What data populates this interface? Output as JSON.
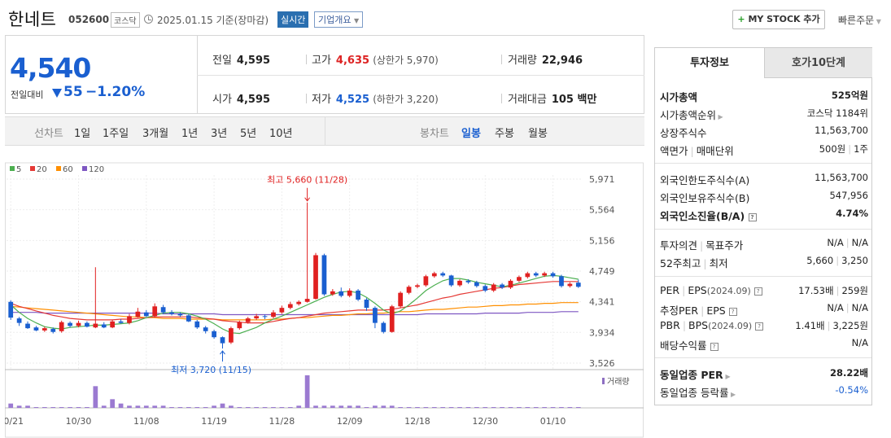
{
  "header": {
    "stock_name": "한네트",
    "stock_code": "052600",
    "market": "코스닥",
    "date": "2025.01.15 기준(장마감)",
    "realtime": "실시간",
    "overview": "기업개요",
    "mystock": "MY STOCK 추가",
    "quick_order": "빠른주문"
  },
  "quote": {
    "price": "4,540",
    "change_label": "전일대비",
    "change": "55",
    "change_pct": "−1.20%",
    "prev_label": "전일",
    "prev": "4,595",
    "high_label": "고가",
    "high": "4,635",
    "upper_limit": "(상한가 5,970)",
    "volume_label": "거래량",
    "volume": "22,946",
    "open_label": "시가",
    "open": "4,595",
    "low_label": "저가",
    "low": "4,525",
    "lower_limit": "(하한가 3,220)",
    "amount_label": "거래대금",
    "amount": "105 백만"
  },
  "toolbar": {
    "line_label": "선차트",
    "line_opts": [
      "1일",
      "1주일",
      "3개월",
      "1년",
      "3년",
      "5년",
      "10년"
    ],
    "candle_label": "봉차트",
    "candle_opts": [
      "일봉",
      "주봉",
      "월봉"
    ],
    "candle_active": "일봉"
  },
  "chart_data": {
    "type": "candlestick",
    "legend": [
      {
        "name": "5",
        "color": "#4caf50"
      },
      {
        "name": "20",
        "color": "#e53935"
      },
      {
        "name": "60",
        "color": "#ff8f00"
      },
      {
        "name": "120",
        "color": "#7e57c2"
      }
    ],
    "y_ticks": [
      "5,971",
      "5,564",
      "5,156",
      "4,749",
      "4,341",
      "3,934",
      "3,526"
    ],
    "y_range": [
      3526,
      5971
    ],
    "x_ticks": [
      "10/21",
      "10/30",
      "11/08",
      "11/19",
      "11/28",
      "12/09",
      "12/18",
      "12/30",
      "01/10"
    ],
    "max_label": "최고 5,660 (11/28)",
    "min_label": "최저 3,720 (11/15)",
    "volume_label": "거래량",
    "candles": [
      [
        4340,
        4130,
        4360,
        4100
      ],
      [
        4120,
        4060,
        4140,
        4020
      ],
      [
        4050,
        3990,
        4080,
        3980
      ],
      [
        4000,
        3960,
        4020,
        3950
      ],
      [
        3960,
        3990,
        4010,
        3940
      ],
      [
        3980,
        3940,
        4000,
        3920
      ],
      [
        3950,
        4070,
        4090,
        3930
      ],
      [
        4060,
        4020,
        4080,
        4000
      ],
      [
        4020,
        4060,
        4090,
        4000
      ],
      [
        4060,
        4010,
        4080,
        4000
      ],
      [
        4000,
        4050,
        4800,
        3990
      ],
      [
        4040,
        4000,
        4070,
        3990
      ],
      [
        4000,
        4080,
        4100,
        3990
      ],
      [
        4080,
        4060,
        4110,
        4050
      ],
      [
        4060,
        4150,
        4180,
        4040
      ],
      [
        4140,
        4210,
        4260,
        4130
      ],
      [
        4200,
        4150,
        4230,
        4140
      ],
      [
        4150,
        4280,
        4320,
        4130
      ],
      [
        4270,
        4200,
        4300,
        4180
      ],
      [
        4200,
        4180,
        4230,
        4160
      ],
      [
        4180,
        4160,
        4200,
        4140
      ],
      [
        4160,
        4080,
        4180,
        4070
      ],
      [
        4080,
        4000,
        4100,
        3980
      ],
      [
        4000,
        3950,
        4020,
        3920
      ],
      [
        3950,
        3870,
        3970,
        3850
      ],
      [
        3870,
        3790,
        3880,
        3720
      ],
      [
        3800,
        3990,
        4010,
        3780
      ],
      [
        3990,
        4070,
        4090,
        3970
      ],
      [
        4070,
        4120,
        4140,
        4050
      ],
      [
        4120,
        4150,
        4180,
        4100
      ],
      [
        4150,
        4140,
        4170,
        4110
      ],
      [
        4140,
        4200,
        4230,
        4120
      ],
      [
        4200,
        4260,
        4290,
        4180
      ],
      [
        4260,
        4310,
        4340,
        4240
      ],
      [
        4310,
        4340,
        4360,
        4290
      ],
      [
        4340,
        4380,
        5660,
        4330
      ],
      [
        4380,
        4960,
        4990,
        4370
      ],
      [
        4960,
        4440,
        4980,
        4420
      ],
      [
        4440,
        4480,
        4510,
        4420
      ],
      [
        4480,
        4420,
        4530,
        4400
      ],
      [
        4420,
        4490,
        4520,
        4400
      ],
      [
        4490,
        4370,
        4510,
        4350
      ],
      [
        4370,
        4260,
        4390,
        4220
      ],
      [
        4260,
        4060,
        4280,
        3990
      ],
      [
        4060,
        3940,
        4080,
        3920
      ],
      [
        3940,
        4280,
        4300,
        3930
      ],
      [
        4280,
        4460,
        4480,
        4260
      ],
      [
        4460,
        4540,
        4560,
        4440
      ],
      [
        4540,
        4560,
        4580,
        4520
      ],
      [
        4560,
        4680,
        4700,
        4540
      ],
      [
        4680,
        4720,
        4740,
        4660
      ],
      [
        4720,
        4690,
        4740,
        4670
      ],
      [
        4690,
        4560,
        4700,
        4540
      ],
      [
        4560,
        4620,
        4640,
        4540
      ],
      [
        4620,
        4600,
        4640,
        4580
      ],
      [
        4600,
        4550,
        4620,
        4530
      ],
      [
        4550,
        4490,
        4570,
        4470
      ],
      [
        4490,
        4570,
        4590,
        4470
      ],
      [
        4570,
        4530,
        4590,
        4510
      ],
      [
        4530,
        4620,
        4640,
        4510
      ],
      [
        4620,
        4670,
        4690,
        4600
      ],
      [
        4670,
        4720,
        4740,
        4650
      ],
      [
        4720,
        4690,
        4740,
        4670
      ],
      [
        4690,
        4720,
        4740,
        4670
      ],
      [
        4720,
        4680,
        4740,
        4660
      ],
      [
        4680,
        4550,
        4700,
        4530
      ],
      [
        4550,
        4580,
        4600,
        4530
      ],
      [
        4595,
        4540,
        4635,
        4525
      ]
    ],
    "volumes": [
      2,
      1,
      1,
      0,
      0,
      0,
      0,
      0,
      0,
      0,
      10,
      1,
      4,
      2,
      1,
      1,
      1,
      1,
      1,
      0,
      0,
      0,
      0,
      0,
      1,
      2,
      1,
      0,
      0,
      0,
      0,
      0,
      0,
      0,
      1,
      15,
      1,
      1,
      1,
      1,
      1,
      1,
      0,
      1,
      1,
      1,
      0,
      0,
      0,
      0,
      0,
      0,
      0,
      0,
      0,
      0,
      0,
      0,
      0,
      0,
      0,
      0,
      0,
      0,
      0,
      0,
      0,
      0
    ],
    "ma5": [
      4300,
      4200,
      4120,
      4060,
      4010,
      3990,
      3980,
      4000,
      4010,
      4020,
      4030,
      4030,
      4040,
      4050,
      4060,
      4090,
      4130,
      4160,
      4190,
      4200,
      4200,
      4180,
      4150,
      4110,
      4050,
      3980,
      3930,
      3920,
      3960,
      4000,
      4060,
      4110,
      4150,
      4200,
      4250,
      4300,
      4350,
      4400,
      4440,
      4470,
      4480,
      4460,
      4400,
      4320,
      4230,
      4180,
      4220,
      4300,
      4390,
      4490,
      4560,
      4620,
      4650,
      4650,
      4630,
      4600,
      4580,
      4560,
      4540,
      4560,
      4590,
      4620,
      4650,
      4680,
      4690,
      4680,
      4660,
      4640
    ],
    "ma20": [
      4320,
      4280,
      4250,
      4220,
      4190,
      4160,
      4140,
      4120,
      4110,
      4100,
      4100,
      4100,
      4100,
      4110,
      4110,
      4120,
      4130,
      4140,
      4140,
      4140,
      4140,
      4140,
      4130,
      4120,
      4110,
      4090,
      4080,
      4070,
      4060,
      4060,
      4060,
      4080,
      4100,
      4120,
      4130,
      4150,
      4170,
      4190,
      4200,
      4210,
      4220,
      4230,
      4230,
      4230,
      4230,
      4240,
      4260,
      4280,
      4300,
      4330,
      4360,
      4390,
      4410,
      4440,
      4460,
      4480,
      4500,
      4520,
      4530,
      4550,
      4570,
      4580,
      4590,
      4600,
      4610,
      4610,
      4610,
      4610
    ],
    "ma60": [
      4280,
      4270,
      4260,
      4250,
      4240,
      4230,
      4220,
      4210,
      4200,
      4190,
      4180,
      4170,
      4160,
      4150,
      4140,
      4140,
      4130,
      4130,
      4120,
      4120,
      4120,
      4110,
      4110,
      4110,
      4110,
      4100,
      4100,
      4100,
      4100,
      4100,
      4100,
      4110,
      4110,
      4120,
      4130,
      4130,
      4140,
      4150,
      4160,
      4160,
      4170,
      4180,
      4180,
      4190,
      4190,
      4200,
      4210,
      4210,
      4220,
      4230,
      4240,
      4240,
      4250,
      4260,
      4270,
      4270,
      4280,
      4290,
      4290,
      4300,
      4300,
      4310,
      4310,
      4320,
      4320,
      4330,
      4330,
      4330
    ],
    "ma120": [
      4200,
      4200,
      4200,
      4200,
      4190,
      4190,
      4190,
      4190,
      4190,
      4190,
      4190,
      4190,
      4190,
      4190,
      4190,
      4190,
      4190,
      4190,
      4180,
      4180,
      4180,
      4180,
      4180,
      4180,
      4180,
      4170,
      4170,
      4170,
      4170,
      4170,
      4170,
      4170,
      4170,
      4170,
      4170,
      4170,
      4170,
      4170,
      4170,
      4170,
      4170,
      4170,
      4170,
      4170,
      4170,
      4170,
      4170,
      4170,
      4170,
      4180,
      4180,
      4180,
      4180,
      4180,
      4180,
      4180,
      4190,
      4190,
      4190,
      4190,
      4190,
      4200,
      4200,
      4200,
      4200,
      4210,
      4210,
      4210
    ]
  },
  "invest": {
    "tab_invest": "투자정보",
    "tab_ask": "호가10단계",
    "market_cap_label": "시가총액",
    "market_cap": "525억원",
    "rank_label": "시가총액순위",
    "rank": "코스닥 1184위",
    "shares_label": "상장주식수",
    "shares": "11,563,700",
    "par_label": "액면가",
    "unit_label": "매매단위",
    "par": "500원",
    "unit": "1주",
    "foreign_limit_label": "외국인한도주식수(A)",
    "foreign_limit": "11,563,700",
    "foreign_hold_label": "외국인보유주식수(B)",
    "foreign_hold": "547,956",
    "foreign_ratio_label": "외국인소진율(B/A)",
    "foreign_ratio": "4.74%",
    "opinion_label": "투자의견",
    "target_label": "목표주가",
    "opinion": "N/A",
    "target": "N/A",
    "w52h_label": "52주최고",
    "w52l_label": "최저",
    "w52h": "5,660",
    "w52l": "3,250",
    "per_label": "PER",
    "eps_label": "EPS",
    "per_date": "(2024.09)",
    "per": "17.53배",
    "eps": "259원",
    "est_per_label": "추정PER",
    "est_eps_label": "EPS",
    "est_per": "N/A",
    "est_eps": "N/A",
    "pbr_label": "PBR",
    "bps_label": "BPS",
    "pbr_date": "(2024.09)",
    "pbr": "1.41배",
    "bps": "3,225원",
    "div_label": "배당수익률",
    "div": "N/A",
    "ind_per_label": "동일업종 PER",
    "ind_per": "28.22배",
    "ind_chg_label": "동일업종 등락률",
    "ind_chg": "-0.54%"
  }
}
